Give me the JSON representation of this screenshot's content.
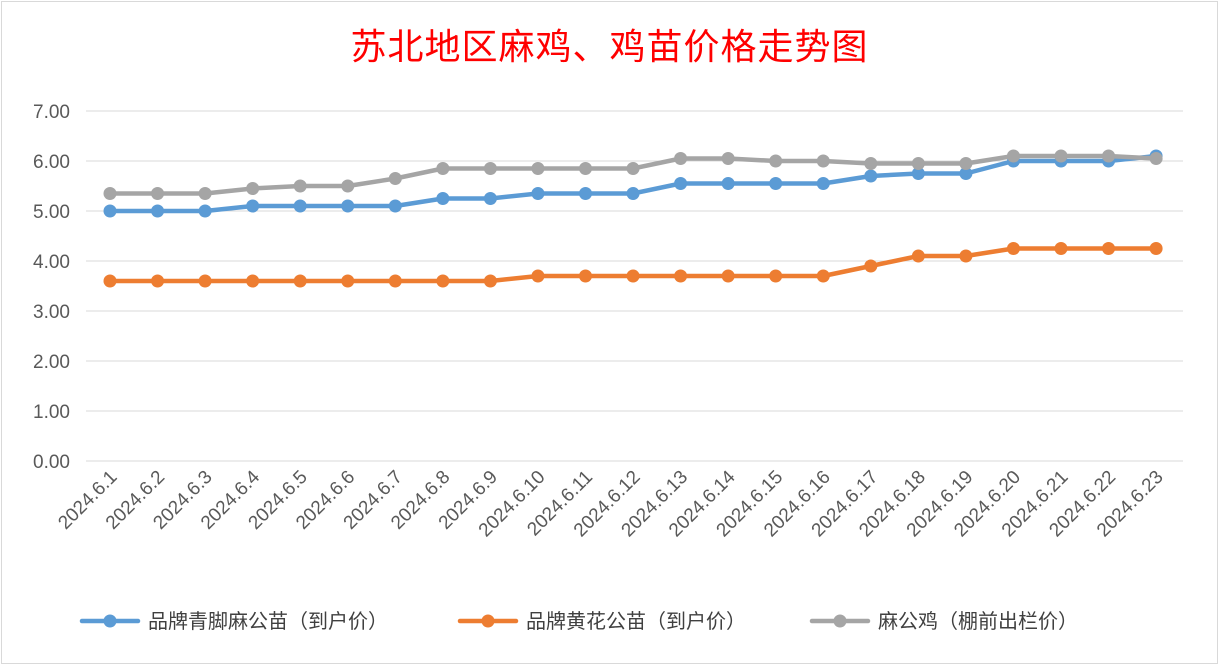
{
  "chart_data": {
    "type": "line",
    "title": "苏北地区麻鸡、鸡苗价格走势图",
    "xlabel": "",
    "ylabel": "",
    "ylim": [
      0,
      7
    ],
    "ytick_labels": [
      "0.00",
      "1.00",
      "2.00",
      "3.00",
      "4.00",
      "5.00",
      "6.00",
      "7.00"
    ],
    "grid": "horizontal",
    "legend_position": "bottom",
    "categories": [
      "2024.6.1",
      "2024.6.2",
      "2024.6.3",
      "2024.6.4",
      "2024.6.5",
      "2024.6.6",
      "2024.6.7",
      "2024.6.8",
      "2024.6.9",
      "2024.6.10",
      "2024.6.11",
      "2024.6.12",
      "2024.6.13",
      "2024.6.14",
      "2024.6.15",
      "2024.6.16",
      "2024.6.17",
      "2024.6.18",
      "2024.6.19",
      "2024.6.20",
      "2024.6.21",
      "2024.6.22",
      "2024.6.23"
    ],
    "series": [
      {
        "name": "品牌青脚麻公苗（到户价）",
        "color": "#5b9bd5",
        "values": [
          5.0,
          5.0,
          5.0,
          5.1,
          5.1,
          5.1,
          5.1,
          5.25,
          5.25,
          5.35,
          5.35,
          5.35,
          5.55,
          5.55,
          5.55,
          5.55,
          5.7,
          5.75,
          5.75,
          6.0,
          6.0,
          6.0,
          6.1
        ]
      },
      {
        "name": "品牌黄花公苗（到户价）",
        "color": "#ed7d31",
        "values": [
          3.6,
          3.6,
          3.6,
          3.6,
          3.6,
          3.6,
          3.6,
          3.6,
          3.6,
          3.7,
          3.7,
          3.7,
          3.7,
          3.7,
          3.7,
          3.7,
          3.9,
          4.1,
          4.1,
          4.25,
          4.25,
          4.25,
          4.25
        ]
      },
      {
        "name": "麻公鸡（棚前出栏价）",
        "color": "#a5a5a5",
        "values": [
          5.35,
          5.35,
          5.35,
          5.45,
          5.5,
          5.5,
          5.65,
          5.85,
          5.85,
          5.85,
          5.85,
          5.85,
          6.05,
          6.05,
          6.0,
          6.0,
          5.95,
          5.95,
          5.95,
          6.1,
          6.1,
          6.1,
          6.05
        ]
      }
    ]
  }
}
